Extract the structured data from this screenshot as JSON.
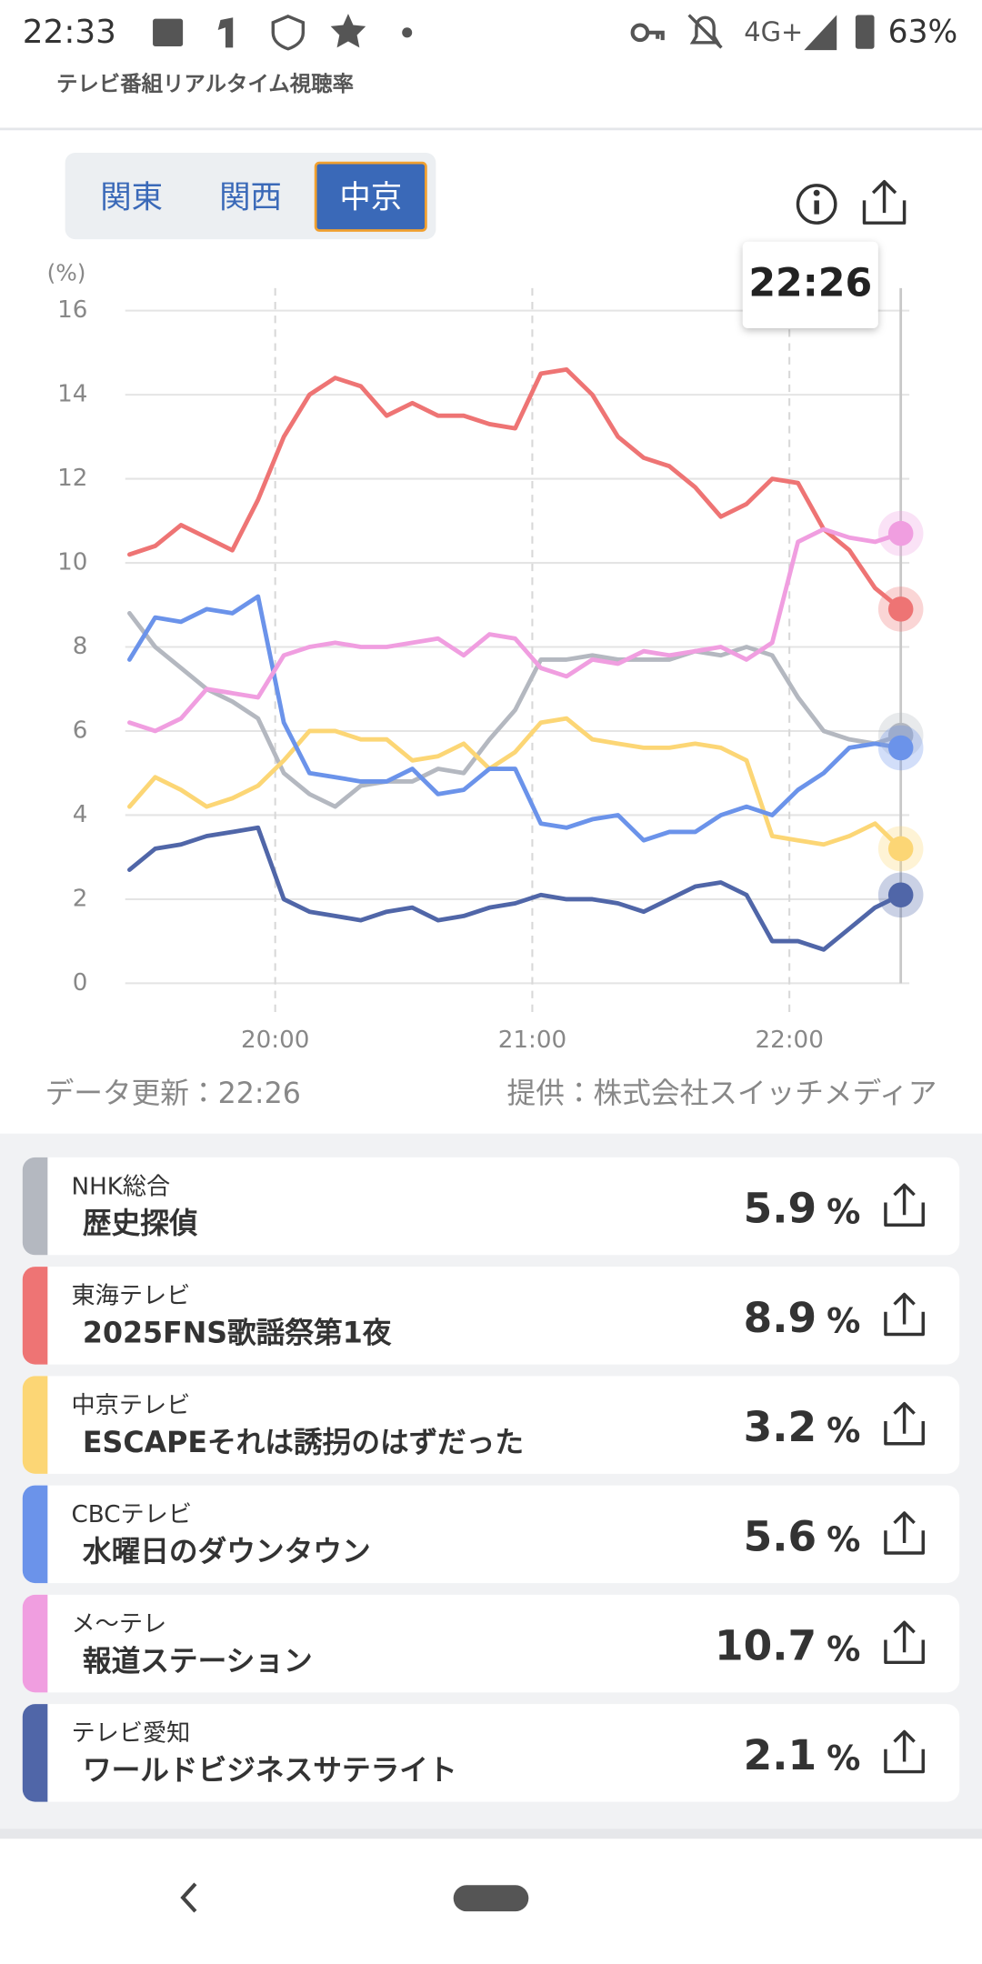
{
  "status_bar": {
    "time": "22:33",
    "network": "4G+",
    "battery": "63%"
  },
  "header": {
    "subtitle": "テレビ番組リアルタイム視聴率"
  },
  "tabs": {
    "items": [
      "関東",
      "関西",
      "中京"
    ],
    "selected": 2
  },
  "tooltip": "22:26",
  "chart_data": {
    "type": "line",
    "y_label": "(%)",
    "x": [
      1166,
      1172,
      1178,
      1184,
      1190,
      1196,
      1202,
      1208,
      1214,
      1220,
      1226,
      1232,
      1238,
      1244,
      1250,
      1256,
      1262,
      1268,
      1274,
      1280,
      1286,
      1292,
      1298,
      1304,
      1310,
      1316,
      1322,
      1328,
      1334,
      1340,
      1346
    ],
    "xlim": [
      1165,
      1348
    ],
    "xticks": [
      {
        "value": 1200,
        "label": "20:00"
      },
      {
        "value": 1260,
        "label": "21:00"
      },
      {
        "value": 1320,
        "label": "22:00"
      }
    ],
    "ylim": [
      0,
      16
    ],
    "yticks": [
      0,
      2,
      4,
      6,
      8,
      10,
      12,
      14,
      16
    ],
    "grid": true,
    "series": [
      {
        "name": "NHK総合",
        "color": "#b4b8c0",
        "values": [
          8.8,
          8.0,
          7.5,
          7.0,
          6.7,
          6.3,
          5.0,
          4.5,
          4.2,
          4.7,
          4.8,
          4.8,
          5.1,
          5.0,
          5.8,
          6.5,
          7.7,
          7.7,
          7.8,
          7.7,
          7.7,
          7.7,
          7.9,
          7.8,
          8.0,
          7.8,
          6.8,
          6.0,
          5.8,
          5.7,
          5.9
        ]
      },
      {
        "name": "東海テレビ",
        "color": "#ee7474",
        "values": [
          10.2,
          10.4,
          10.9,
          10.6,
          10.3,
          11.5,
          13.0,
          14.0,
          14.4,
          14.2,
          13.5,
          13.8,
          13.5,
          13.5,
          13.3,
          13.2,
          14.5,
          14.6,
          14.0,
          13.0,
          12.5,
          12.3,
          11.8,
          11.1,
          11.4,
          12.0,
          11.9,
          10.8,
          10.3,
          9.4,
          8.9
        ]
      },
      {
        "name": "中京テレビ",
        "color": "#fcd675",
        "values": [
          4.2,
          4.9,
          4.6,
          4.2,
          4.4,
          4.7,
          5.3,
          6.0,
          6.0,
          5.8,
          5.8,
          5.3,
          5.4,
          5.7,
          5.1,
          5.5,
          6.2,
          6.3,
          5.8,
          5.7,
          5.6,
          5.6,
          5.7,
          5.6,
          5.3,
          3.5,
          3.4,
          3.3,
          3.5,
          3.8,
          3.2
        ]
      },
      {
        "name": "CBCテレビ",
        "color": "#6b93ea",
        "values": [
          7.7,
          8.7,
          8.6,
          8.9,
          8.8,
          9.2,
          6.2,
          5.0,
          4.9,
          4.8,
          4.8,
          5.1,
          4.5,
          4.6,
          5.1,
          5.1,
          3.8,
          3.7,
          3.9,
          4.0,
          3.4,
          3.6,
          3.6,
          4.0,
          4.2,
          4.0,
          4.6,
          5.0,
          5.6,
          5.7,
          5.6
        ]
      },
      {
        "name": "メ〜テレ",
        "color": "#f09ee0",
        "values": [
          6.2,
          6.0,
          6.3,
          7.0,
          6.9,
          6.8,
          7.8,
          8.0,
          8.1,
          8.0,
          8.0,
          8.1,
          8.2,
          7.8,
          8.3,
          8.2,
          7.5,
          7.3,
          7.7,
          7.6,
          7.9,
          7.8,
          7.9,
          8.0,
          7.7,
          8.1,
          10.5,
          10.8,
          10.6,
          10.5,
          10.7
        ]
      },
      {
        "name": "テレビ愛知",
        "color": "#5066a8",
        "values": [
          2.7,
          3.2,
          3.3,
          3.5,
          3.6,
          3.7,
          2.0,
          1.7,
          1.6,
          1.5,
          1.7,
          1.8,
          1.5,
          1.6,
          1.8,
          1.9,
          2.1,
          2.0,
          2.0,
          1.9,
          1.7,
          2.0,
          2.3,
          2.4,
          2.1,
          1.0,
          1.0,
          0.8,
          1.3,
          1.8,
          2.1
        ]
      }
    ]
  },
  "footer": {
    "updated": "データ更新：22:26",
    "provider": "提供：株式会社スイッチメディア"
  },
  "list": {
    "unit": "%",
    "rows": [
      {
        "program": "歴史探偵",
        "rating": "5.9"
      },
      {
        "program": "2025FNS歌謡祭第1夜",
        "rating": "8.9"
      },
      {
        "program": "ESCAPEそれは誘拐のはずだった",
        "rating": "3.2"
      },
      {
        "program": "水曜日のダウンタウン",
        "rating": "5.6"
      },
      {
        "program": "報道ステーション",
        "rating": "10.7"
      },
      {
        "program": "ワールドビジネスサテライト",
        "rating": "2.1"
      }
    ]
  }
}
